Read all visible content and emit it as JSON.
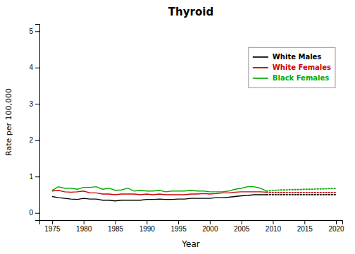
{
  "chart_data": {
    "type": "line",
    "title": "Thyroid",
    "xlabel": "Year",
    "ylabel": "Rate per 100,000",
    "xlim": [
      1973,
      2021
    ],
    "ylim": [
      -0.2,
      5.2
    ],
    "xticks": [
      1975,
      1980,
      1985,
      1990,
      1995,
      2000,
      2005,
      2010,
      2015,
      2020
    ],
    "yticks": [
      0,
      1,
      2,
      3,
      4,
      5
    ],
    "legend": "upper right",
    "series": [
      {
        "name": "White Males",
        "color": "#000000",
        "line_style": "solid",
        "x": [
          1975,
          1976,
          1977,
          1978,
          1979,
          1980,
          1981,
          1982,
          1983,
          1984,
          1985,
          1986,
          1987,
          1988,
          1989,
          1990,
          1991,
          1992,
          1993,
          1994,
          1995,
          1996,
          1997,
          1998,
          1999,
          2000,
          2001,
          2002,
          2003,
          2004,
          2005,
          2006,
          2007,
          2008,
          2009
        ],
        "values": [
          0.45,
          0.42,
          0.4,
          0.38,
          0.37,
          0.4,
          0.38,
          0.38,
          0.35,
          0.35,
          0.33,
          0.35,
          0.35,
          0.35,
          0.35,
          0.37,
          0.37,
          0.38,
          0.37,
          0.37,
          0.38,
          0.38,
          0.4,
          0.4,
          0.4,
          0.4,
          0.42,
          0.42,
          0.43,
          0.45,
          0.47,
          0.48,
          0.5,
          0.5,
          0.5
        ]
      },
      {
        "name": "White Males",
        "color": "#000000",
        "line_style": "dotted",
        "x": [
          2009,
          2010,
          2011,
          2012,
          2013,
          2014,
          2015,
          2016,
          2017,
          2018,
          2019,
          2020
        ],
        "values": [
          0.5,
          0.5,
          0.5,
          0.5,
          0.5,
          0.5,
          0.5,
          0.5,
          0.5,
          0.5,
          0.5,
          0.5
        ]
      },
      {
        "name": "White Females",
        "color": "#cc0000",
        "line_style": "solid",
        "x": [
          1975,
          1976,
          1977,
          1978,
          1979,
          1980,
          1981,
          1982,
          1983,
          1984,
          1985,
          1986,
          1987,
          1988,
          1989,
          1990,
          1991,
          1992,
          1993,
          1994,
          1995,
          1996,
          1997,
          1998,
          1999,
          2000,
          2001,
          2002,
          2003,
          2004,
          2005,
          2006,
          2007,
          2008,
          2009
        ],
        "values": [
          0.6,
          0.62,
          0.58,
          0.57,
          0.58,
          0.6,
          0.55,
          0.55,
          0.52,
          0.52,
          0.5,
          0.52,
          0.52,
          0.52,
          0.5,
          0.52,
          0.5,
          0.52,
          0.5,
          0.5,
          0.5,
          0.5,
          0.52,
          0.52,
          0.53,
          0.52,
          0.53,
          0.55,
          0.55,
          0.57,
          0.58,
          0.58,
          0.58,
          0.58,
          0.57
        ]
      },
      {
        "name": "White Females",
        "color": "#cc0000",
        "line_style": "dotted",
        "x": [
          2009,
          2010,
          2011,
          2012,
          2013,
          2014,
          2015,
          2016,
          2017,
          2018,
          2019,
          2020
        ],
        "values": [
          0.57,
          0.56,
          0.56,
          0.56,
          0.56,
          0.56,
          0.56,
          0.56,
          0.56,
          0.56,
          0.56,
          0.56
        ]
      },
      {
        "name": "Black Females",
        "color": "#00aa00",
        "line_style": "solid",
        "x": [
          1975,
          1976,
          1977,
          1978,
          1979,
          1980,
          1981,
          1982,
          1983,
          1984,
          1985,
          1986,
          1987,
          1988,
          1989,
          1990,
          1991,
          1992,
          1993,
          1994,
          1995,
          1996,
          1997,
          1998,
          1999,
          2000,
          2001,
          2002,
          2003,
          2004,
          2005,
          2006,
          2007,
          2008,
          2009
        ],
        "values": [
          0.62,
          0.72,
          0.68,
          0.68,
          0.65,
          0.7,
          0.7,
          0.72,
          0.65,
          0.68,
          0.62,
          0.63,
          0.68,
          0.6,
          0.62,
          0.6,
          0.6,
          0.62,
          0.58,
          0.6,
          0.6,
          0.6,
          0.62,
          0.6,
          0.6,
          0.58,
          0.58,
          0.58,
          0.6,
          0.65,
          0.68,
          0.72,
          0.72,
          0.68,
          0.6
        ]
      },
      {
        "name": "Black Females",
        "color": "#00aa00",
        "line_style": "dotted",
        "x": [
          2009,
          2010,
          2011,
          2012,
          2013,
          2014,
          2015,
          2016,
          2017,
          2018,
          2019,
          2020
        ],
        "values": [
          0.6,
          0.62,
          0.63,
          0.63,
          0.64,
          0.64,
          0.65,
          0.65,
          0.66,
          0.66,
          0.67,
          0.67
        ]
      }
    ]
  }
}
